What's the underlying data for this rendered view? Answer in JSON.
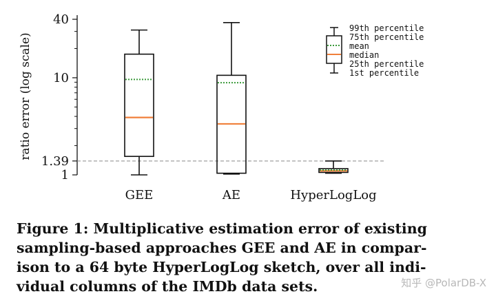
{
  "chart_data": {
    "type": "box",
    "ylabel": "ratio error (log scale)",
    "yscale": "log",
    "ylim": [
      1,
      40
    ],
    "yticks": [
      {
        "value": 1,
        "label": "1"
      },
      {
        "value": 1.39,
        "label": "1.39"
      },
      {
        "value": 10,
        "label": "10"
      },
      {
        "value": 40,
        "label": "40"
      }
    ],
    "reference_line": 1.39,
    "categories": [
      "GEE",
      "AE",
      "HyperLogLog"
    ],
    "boxes": [
      {
        "name": "GEE",
        "p1": 1.0,
        "p25": 1.55,
        "median": 3.9,
        "mean": 9.6,
        "p75": 17.5,
        "p99": 31
      },
      {
        "name": "AE",
        "p1": 1.02,
        "p25": 1.04,
        "median": 3.35,
        "mean": 8.9,
        "p75": 10.6,
        "p99": 37
      },
      {
        "name": "HyperLogLog",
        "p1": 1.04,
        "p25": 1.06,
        "median": 1.1,
        "mean": 1.12,
        "p75": 1.16,
        "p99": 1.39
      }
    ],
    "colors": {
      "box": "#111111",
      "median": "#f07f3a",
      "mean": "#3a9a3a",
      "reference": "#888888"
    },
    "legend": {
      "placement": "top-right",
      "entries": [
        "99th percentile",
        "75th percentile",
        "mean",
        "median",
        "25th percentile",
        "1st percentile"
      ]
    }
  },
  "caption": [
    "Figure 1: Multiplicative estimation error of existing",
    "sampling-based approaches GEE and AE in compar-",
    "ison to a 64 byte HyperLogLog sketch, over all indi-",
    "vidual columns of the IMDb data sets."
  ],
  "watermark": "知乎 @PolarDB-X"
}
